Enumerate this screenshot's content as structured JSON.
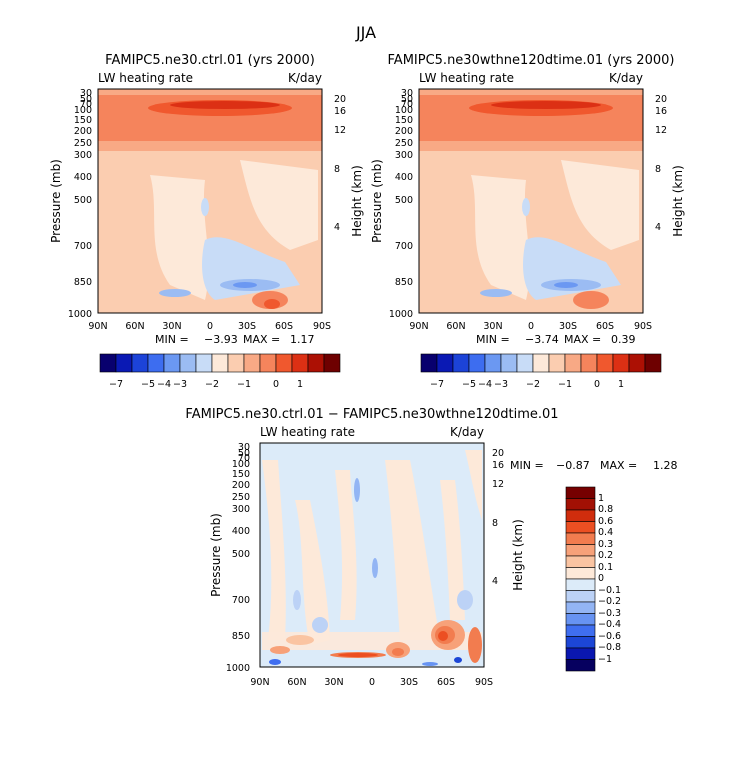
{
  "main_title": "JJA",
  "color_scales": {
    "full": [
      "#08006e",
      "#0a19b4",
      "#1c43d8",
      "#3d6df0",
      "#6b98f2",
      "#9bbcf3",
      "#c8dcf7",
      "#fde9d9",
      "#fbcdb0",
      "#f8a985",
      "#f5845c",
      "#f0582e",
      "#dc3014",
      "#ac1004",
      "#6e0000"
    ],
    "diff": [
      "#06005f",
      "#0a17b0",
      "#1c46d6",
      "#3f6ef0",
      "#6793f2",
      "#93b5f4",
      "#bcd2f6",
      "#dcebf9",
      "#fde9d9",
      "#fac4a2",
      "#f7a179",
      "#f27c4f",
      "#ec4f22",
      "#d02d0d",
      "#a21004",
      "#760000"
    ]
  },
  "chart_data": [
    {
      "type": "heatmap",
      "title": "FAMIPC5.ne30.ctrl.01 (yrs 2000)",
      "left_label": "LW heating rate",
      "right_label": "K/day",
      "ylabel": "Pressure (mb)",
      "y2label": "Height (km)",
      "x_ticks": [
        "90N",
        "60N",
        "30N",
        "0",
        "30S",
        "60S",
        "90S"
      ],
      "y_ticks": [
        "30",
        "50",
        "70",
        "100",
        "150",
        "200",
        "250",
        "300",
        "400",
        "500",
        "700",
        "850",
        "1000"
      ],
      "y2_ticks": [
        "20",
        "16",
        "12",
        "8",
        "4"
      ],
      "min_label": "MIN =",
      "min_value": "−3.93",
      "max_label": "MAX =",
      "max_value": "1.17",
      "colorbar_labels": [
        "−7",
        "−5",
        "−4",
        "−3",
        "−2",
        "−1",
        "0",
        "1"
      ]
    },
    {
      "type": "heatmap",
      "title": "FAMIPC5.ne30wthne120dtime.01 (yrs 2000)",
      "left_label": "LW heating rate",
      "right_label": "K/day",
      "ylabel": "Pressure (mb)",
      "y2label": "Height (km)",
      "x_ticks": [
        "90N",
        "60N",
        "30N",
        "0",
        "30S",
        "60S",
        "90S"
      ],
      "y_ticks": [
        "30",
        "50",
        "70",
        "100",
        "150",
        "200",
        "250",
        "300",
        "400",
        "500",
        "700",
        "850",
        "1000"
      ],
      "y2_ticks": [
        "20",
        "16",
        "12",
        "8",
        "4"
      ],
      "min_label": "MIN =",
      "min_value": "−3.74",
      "max_label": "MAX =",
      "max_value": "0.39",
      "colorbar_labels": [
        "−7",
        "−5",
        "−4",
        "−3",
        "−2",
        "−1",
        "0",
        "1"
      ]
    },
    {
      "type": "heatmap",
      "title": "FAMIPC5.ne30.ctrl.01 − FAMIPC5.ne30wthne120dtime.01",
      "left_label": "LW heating rate",
      "right_label": "K/day",
      "ylabel": "Pressure (mb)",
      "y2label": "Height (km)",
      "x_ticks": [
        "90N",
        "60N",
        "30N",
        "0",
        "30S",
        "60S",
        "90S"
      ],
      "y_ticks": [
        "30",
        "50",
        "70",
        "100",
        "150",
        "200",
        "250",
        "300",
        "400",
        "500",
        "700",
        "850",
        "1000"
      ],
      "y2_ticks": [
        "20",
        "16",
        "12",
        "8",
        "4"
      ],
      "min_label": "MIN =",
      "min_value": "−0.87",
      "max_label": "MAX =",
      "max_value": "1.28",
      "colorbar_labels": [
        "1",
        "0.8",
        "0.6",
        "0.4",
        "0.3",
        "0.2",
        "0.1",
        "0",
        "−0.1",
        "−0.2",
        "−0.3",
        "−0.4",
        "−0.6",
        "−0.8",
        "−1"
      ]
    }
  ]
}
